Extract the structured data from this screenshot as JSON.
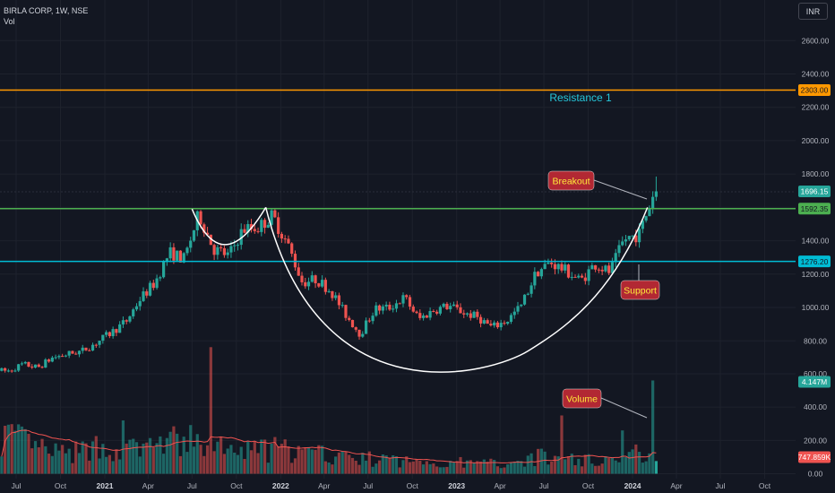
{
  "header": {
    "symbol_line": "BIRLA CORP, 1W, NSE",
    "volume_label": "Vol"
  },
  "currency_button": "INR",
  "colors": {
    "background": "#131722",
    "up": "#26a69a",
    "down": "#ef5350",
    "resistance": "#ff9800",
    "breakout_level": "#4caf50",
    "support": "#00bcd4",
    "callout_bg": "#b22833",
    "callout_text": "#ffeb3b",
    "cup_curve": "#ffffff"
  },
  "chart_data": {
    "type": "candlestick",
    "title": "",
    "symbol": "BIRLA CORP",
    "interval": "1W",
    "exchange": "NSE",
    "price_axis_ticks": [
      800,
      1000,
      1200,
      1400,
      1600,
      1800,
      2000,
      2200,
      2400,
      2600
    ],
    "price_axis_labels": [
      "800.00",
      "1000.00",
      "1200.00",
      "1400.00",
      "1600.00",
      "1800.00",
      "2000.00",
      "2200.00",
      "2400.00",
      "2600.00"
    ],
    "volume_axis_ticks": [
      0,
      200,
      400,
      600
    ],
    "volume_axis_labels": [
      "0.00",
      "200.00",
      "400.00",
      "600.00"
    ],
    "x_axis_labels": [
      "Jul",
      "Oct",
      "2021",
      "Apr",
      "Jul",
      "Oct",
      "2022",
      "Apr",
      "Jul",
      "Oct",
      "2023",
      "Apr",
      "Jul",
      "Oct",
      "2024",
      "Apr",
      "Jul",
      "Oct"
    ],
    "x_axis_dates": [
      "2020-07-01",
      "2020-10-01",
      "2021-01-01",
      "2021-04-01",
      "2021-07-01",
      "2021-10-01",
      "2022-01-01",
      "2022-04-01",
      "2022-07-01",
      "2022-10-01",
      "2023-01-01",
      "2023-04-01",
      "2023-07-01",
      "2023-10-01",
      "2024-01-01",
      "2024-04-01",
      "2024-07-01",
      "2024-10-01"
    ],
    "price_path_monthly": [
      [
        "2020-06",
        620
      ],
      [
        "2020-07",
        660
      ],
      [
        "2020-08",
        640
      ],
      [
        "2020-09",
        700
      ],
      [
        "2020-10",
        720
      ],
      [
        "2020-11",
        740
      ],
      [
        "2020-12",
        790
      ],
      [
        "2021-01",
        850
      ],
      [
        "2021-02",
        920
      ],
      [
        "2021-03",
        1050
      ],
      [
        "2021-04",
        1150
      ],
      [
        "2021-05",
        1330
      ],
      [
        "2021-06",
        1290
      ],
      [
        "2021-07",
        1560
      ],
      [
        "2021-08",
        1350
      ],
      [
        "2021-09",
        1310
      ],
      [
        "2021-10",
        1470
      ],
      [
        "2021-11",
        1480
      ],
      [
        "2021-12",
        1550
      ],
      [
        "2022-01",
        1380
      ],
      [
        "2022-02",
        1150
      ],
      [
        "2022-03",
        1170
      ],
      [
        "2022-04",
        1100
      ],
      [
        "2022-05",
        960
      ],
      [
        "2022-06",
        840
      ],
      [
        "2022-07",
        990
      ],
      [
        "2022-08",
        1000
      ],
      [
        "2022-09",
        1060
      ],
      [
        "2022-10",
        930
      ],
      [
        "2022-11",
        985
      ],
      [
        "2022-12",
        1010
      ],
      [
        "2023-01",
        970
      ],
      [
        "2023-02",
        940
      ],
      [
        "2023-03",
        880
      ],
      [
        "2023-04",
        920
      ],
      [
        "2023-05",
        1010
      ],
      [
        "2023-06",
        1210
      ],
      [
        "2023-07",
        1270
      ],
      [
        "2023-08",
        1220
      ],
      [
        "2023-09",
        1160
      ],
      [
        "2023-10",
        1260
      ],
      [
        "2023-11",
        1210
      ],
      [
        "2023-12",
        1410
      ],
      [
        "2024-01",
        1440
      ],
      [
        "2024-02",
        1696.15
      ]
    ],
    "volume_path_monthly": [
      [
        "2020-06",
        230
      ],
      [
        "2020-08",
        150
      ],
      [
        "2020-10",
        110
      ],
      [
        "2020-12",
        160
      ],
      [
        "2021-02",
        140
      ],
      [
        "2021-04",
        170
      ],
      [
        "2021-06",
        200
      ],
      [
        "2021-08",
        150
      ],
      [
        "2021-10",
        130
      ],
      [
        "2021-12",
        150
      ],
      [
        "2022-02",
        120
      ],
      [
        "2022-04",
        110
      ],
      [
        "2022-06",
        90
      ],
      [
        "2022-08",
        80
      ],
      [
        "2022-10",
        70
      ],
      [
        "2022-12",
        70
      ],
      [
        "2023-02",
        60
      ],
      [
        "2023-04",
        70
      ],
      [
        "2023-06",
        100
      ],
      [
        "2023-08",
        90
      ],
      [
        "2023-10",
        80
      ],
      [
        "2023-12",
        100
      ],
      [
        "2024-02",
        150
      ]
    ],
    "volume_spikes": [
      [
        "2021-08",
        760
      ],
      [
        "2023-08",
        350
      ],
      [
        "2021-02",
        320
      ],
      [
        "2023-12",
        260
      ],
      [
        "2024-02",
        560
      ]
    ],
    "volume_moving_average_last": 747.859,
    "horizontal_levels": [
      {
        "name": "Resistance 1",
        "value": 2303.0,
        "color": "#ff9800",
        "label": "2303.00"
      },
      {
        "value": 1592.35,
        "color": "#4caf50",
        "label": "1592.35"
      },
      {
        "value": 1276.2,
        "color": "#00bcd4",
        "label": "1276.20"
      }
    ],
    "last_price_label": "1696.15",
    "last_volume_label": "4.147M",
    "volume_ma_label": "747.859K",
    "annotations": {
      "resistance_text": "Resistance 1",
      "breakout": "Breakout",
      "support": "Support",
      "volume": "Volume"
    },
    "cup_and_handle": {
      "left_rim": [
        "2021-07",
        1590
      ],
      "left_cup_bottom": [
        "2021-09",
        1320
      ],
      "mid_rim": [
        "2021-12",
        1600
      ],
      "cup_bottom": [
        "2023-01",
        740
      ],
      "right_rim": [
        "2024-02",
        1600
      ]
    }
  }
}
